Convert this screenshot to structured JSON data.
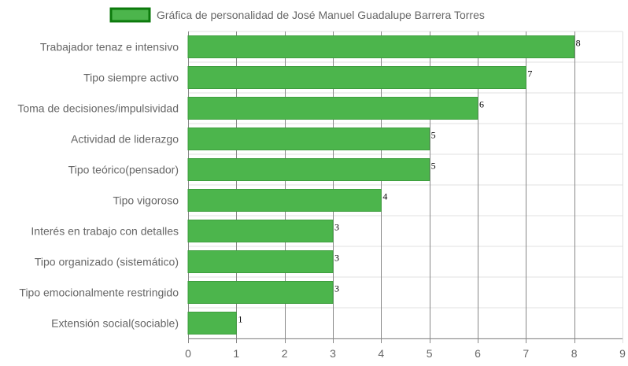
{
  "chart_data": {
    "type": "bar",
    "orientation": "horizontal",
    "title": "",
    "legend": {
      "placement": "top-center",
      "entries": [
        {
          "label": "Gráfica de personalidad de José Manuel Guadalupe Barrera Torres",
          "color": "#4cb54c",
          "border_color": "#0c7a0c"
        }
      ]
    },
    "categories": [
      "Trabajador tenaz e intensivo",
      "Tipo siempre activo",
      "Toma de decisiones/impulsividad",
      "Actividad de liderazgo",
      "Tipo teórico(pensador)",
      "Tipo vigoroso",
      "Interés en trabajo con detalles",
      "Tipo organizado (sistemático)",
      "Tipo emocionalmente restringido",
      "Extensión social(sociable)"
    ],
    "series": [
      {
        "name": "Gráfica de personalidad de José Manuel Guadalupe Barrera Torres",
        "values": [
          8,
          7,
          6,
          5,
          5,
          4,
          3,
          3,
          3,
          1
        ],
        "color": "#4cb54c"
      }
    ],
    "xlim": [
      0,
      9
    ],
    "xticks": [
      0,
      1,
      2,
      3,
      4,
      5,
      6,
      7,
      8,
      9
    ],
    "xlabel": "",
    "ylabel": "",
    "grid": true,
    "colors": {
      "bar_fill": "#4cb54c",
      "bar_border": "#3e9e3e",
      "grid_line": "#e0e0e0",
      "tick_grid_line": "#888888",
      "text": "#666666"
    }
  }
}
